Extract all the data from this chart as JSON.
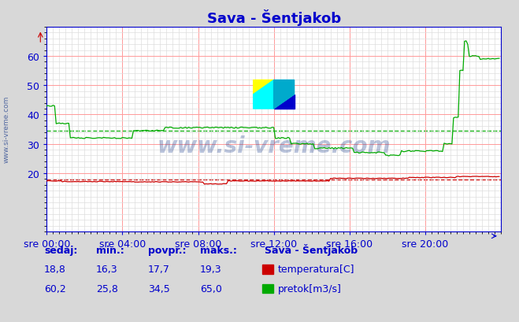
{
  "title": "Sava - Šentjakob",
  "bg_color": "#d8d8d8",
  "plot_bg_color": "#ffffff",
  "grid_color_major": "#ff9999",
  "grid_color_minor": "#dddddd",
  "xlim": [
    0,
    287
  ],
  "ylim": [
    0,
    70
  ],
  "yticks": [
    20,
    30,
    40,
    50,
    60
  ],
  "xtick_labels": [
    "sre 00:00",
    "sre 04:00",
    "sre 08:00",
    "sre 12:00",
    "sre 16:00",
    "sre 20:00"
  ],
  "xtick_positions": [
    0,
    48,
    96,
    144,
    192,
    240
  ],
  "temperatura_color": "#cc0000",
  "pretok_color": "#00aa00",
  "avg_temp": 17.7,
  "avg_pretok": 34.5,
  "watermark_text": "www.si-vreme.com",
  "watermark_color": "#1a3a8a",
  "watermark_alpha": 0.3,
  "sidebar_text": "www.si-vreme.com",
  "sidebar_color": "#1a3a8a",
  "table_headers": [
    "sedaj:",
    "min.:",
    "povpr.:",
    "maks.:"
  ],
  "table_row1": [
    "18,8",
    "16,3",
    "17,7",
    "19,3"
  ],
  "table_row2": [
    "60,2",
    "25,8",
    "34,5",
    "65,0"
  ],
  "legend_title": "Sava - Šentjakob",
  "legend_label1": "temperatura[C]",
  "legend_label2": "pretok[m3/s]",
  "title_color": "#0000cc",
  "axis_color": "#0000cc",
  "table_color": "#0000cc",
  "title_fontsize": 13,
  "tick_fontsize": 9,
  "table_fontsize": 9
}
